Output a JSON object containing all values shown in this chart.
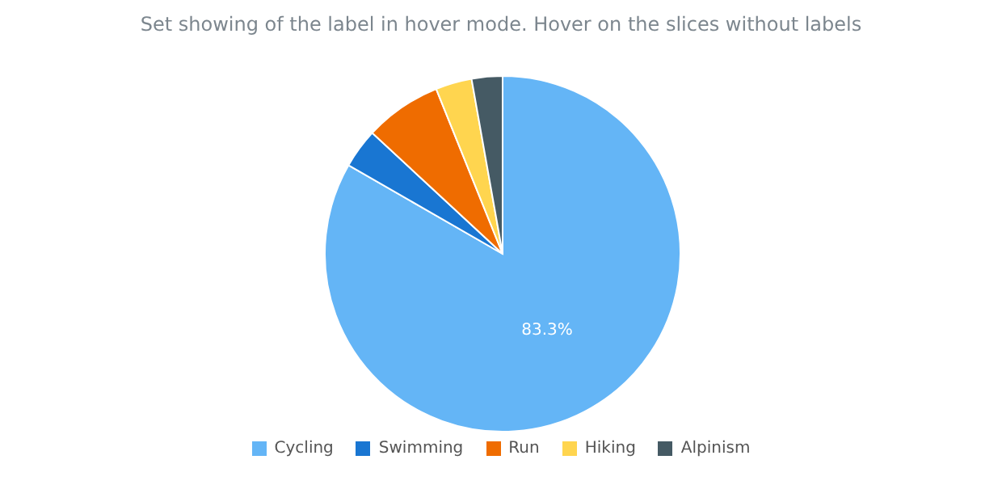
{
  "chart_data": {
    "type": "pie",
    "title": "Set showing of the label in hover mode. Hover on the slices without labels",
    "categories": [
      "Cycling",
      "Swimming",
      "Run",
      "Hiking",
      "Alpinism"
    ],
    "values": [
      83.3,
      3.6,
      7.0,
      3.3,
      2.8
    ],
    "colors": [
      "#64b5f6",
      "#1976d2",
      "#ef6c00",
      "#ffd54f",
      "#455a64"
    ],
    "value_labels": [
      "83.3%",
      null,
      null,
      null,
      null
    ],
    "legend": "bottom"
  }
}
